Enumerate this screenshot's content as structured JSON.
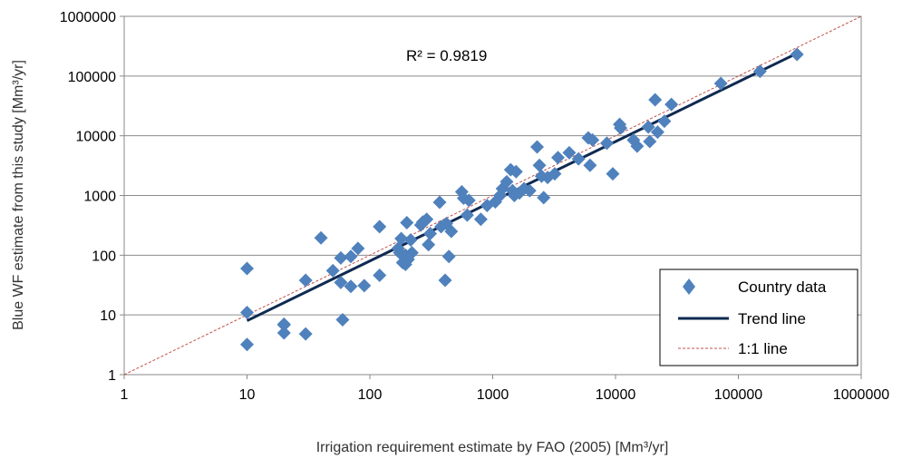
{
  "chart_data": {
    "type": "scatter",
    "xlabel": "Irrigation requirement estimate by FAO (2005) [Mm³/yr]",
    "ylabel": "Blue WF estimate from this study [Mm³/yr]",
    "x_scale": "log",
    "y_scale": "log",
    "xlim": [
      1,
      1000000
    ],
    "ylim": [
      1,
      1000000
    ],
    "x_ticks": [
      "1",
      "10",
      "100",
      "1000",
      "10000",
      "100000",
      "1000000"
    ],
    "y_ticks": [
      "1",
      "10",
      "100",
      "1000",
      "10000",
      "100000",
      "1000000"
    ],
    "grid": "horizontal",
    "annotation": "R² = 0.9819",
    "legend_position": "bottom-right",
    "colors": {
      "points": "#4f81bd",
      "trend": "#0f2a52",
      "one_to_one": "#c0504d"
    },
    "series": [
      {
        "name": "Country data",
        "kind": "scatter",
        "points": [
          [
            10,
            60
          ],
          [
            10,
            11
          ],
          [
            10,
            3.2
          ],
          [
            20,
            7
          ],
          [
            20,
            6.8
          ],
          [
            20,
            5
          ],
          [
            30,
            38
          ],
          [
            30,
            4.8
          ],
          [
            40,
            195
          ],
          [
            50,
            55
          ],
          [
            58,
            90
          ],
          [
            58,
            35
          ],
          [
            60,
            8.3
          ],
          [
            70,
            95
          ],
          [
            70,
            30
          ],
          [
            80,
            130
          ],
          [
            90,
            31
          ],
          [
            120,
            300
          ],
          [
            120,
            46
          ],
          [
            170,
            130
          ],
          [
            175,
            110
          ],
          [
            180,
            190
          ],
          [
            185,
            75
          ],
          [
            195,
            100
          ],
          [
            195,
            70
          ],
          [
            200,
            350
          ],
          [
            205,
            85
          ],
          [
            215,
            180
          ],
          [
            220,
            110
          ],
          [
            260,
            320
          ],
          [
            270,
            360
          ],
          [
            290,
            400
          ],
          [
            300,
            150
          ],
          [
            310,
            230
          ],
          [
            370,
            770
          ],
          [
            380,
            300
          ],
          [
            410,
            38
          ],
          [
            420,
            340
          ],
          [
            440,
            95
          ],
          [
            460,
            250
          ],
          [
            560,
            1150
          ],
          [
            580,
            900
          ],
          [
            620,
            470
          ],
          [
            640,
            830
          ],
          [
            800,
            400
          ],
          [
            900,
            680
          ],
          [
            1050,
            780
          ],
          [
            1150,
            1000
          ],
          [
            1200,
            1300
          ],
          [
            1300,
            1700
          ],
          [
            1400,
            2700
          ],
          [
            1450,
            1200
          ],
          [
            1500,
            1000
          ],
          [
            1550,
            2500
          ],
          [
            1650,
            1100
          ],
          [
            1800,
            1300
          ],
          [
            2000,
            1200
          ],
          [
            2300,
            6500
          ],
          [
            2400,
            3200
          ],
          [
            2500,
            2100
          ],
          [
            2600,
            920
          ],
          [
            2800,
            2000
          ],
          [
            3200,
            2300
          ],
          [
            3400,
            4300
          ],
          [
            4200,
            5200
          ],
          [
            5000,
            4100
          ],
          [
            6000,
            9200
          ],
          [
            6200,
            3200
          ],
          [
            6500,
            8500
          ],
          [
            8500,
            7500
          ],
          [
            9500,
            2300
          ],
          [
            10800,
            15500
          ],
          [
            11000,
            13500
          ],
          [
            14000,
            8500
          ],
          [
            15000,
            6700
          ],
          [
            18500,
            14000
          ],
          [
            19000,
            8000
          ],
          [
            21000,
            40000
          ],
          [
            22000,
            11500
          ],
          [
            25000,
            17500
          ],
          [
            28500,
            33500
          ],
          [
            72000,
            75000
          ],
          [
            150000,
            120000
          ],
          [
            300000,
            230000
          ]
        ]
      },
      {
        "name": "Trend line",
        "kind": "line",
        "points": [
          [
            10,
            8
          ],
          [
            300000,
            240000
          ]
        ]
      },
      {
        "name": "1:1 line",
        "kind": "dashed-line",
        "points": [
          [
            1,
            1
          ],
          [
            1000000,
            1000000
          ]
        ]
      }
    ]
  }
}
